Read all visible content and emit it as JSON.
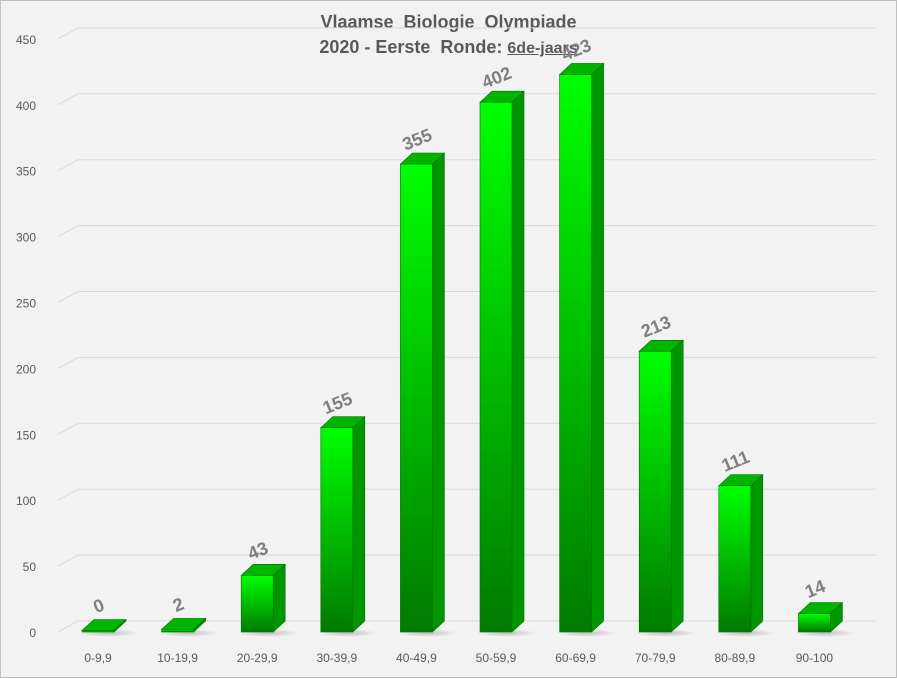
{
  "chart_data": {
    "type": "bar",
    "title": "Vlaamse  Biologie  Olympiade",
    "subtitle_prefix": "2020 - Eerste  Ronde: ",
    "subtitle_emphasis": "6de-jaars",
    "categories": [
      "0-9,9",
      "10-19,9",
      "20-29,9",
      "30-39,9",
      "40-49,9",
      "50-59,9",
      "60-69,9",
      "70-79,9",
      "80-89,9",
      "90-100"
    ],
    "values": [
      0,
      2,
      43,
      155,
      355,
      402,
      423,
      213,
      111,
      14
    ],
    "yticks": [
      "0",
      "50",
      "100",
      "150",
      "200",
      "250",
      "300",
      "350",
      "400",
      "450"
    ],
    "ylim": [
      0,
      450
    ],
    "grid": true,
    "legend": "none",
    "colors": {
      "bar_top": "#00ff00",
      "bar_bottom": "#007a00",
      "bar_side": "#009600",
      "bar_cap": "#00b400",
      "gridline": "#d9d9d9",
      "label": "#7f7f7f",
      "tick": "#595959"
    }
  }
}
